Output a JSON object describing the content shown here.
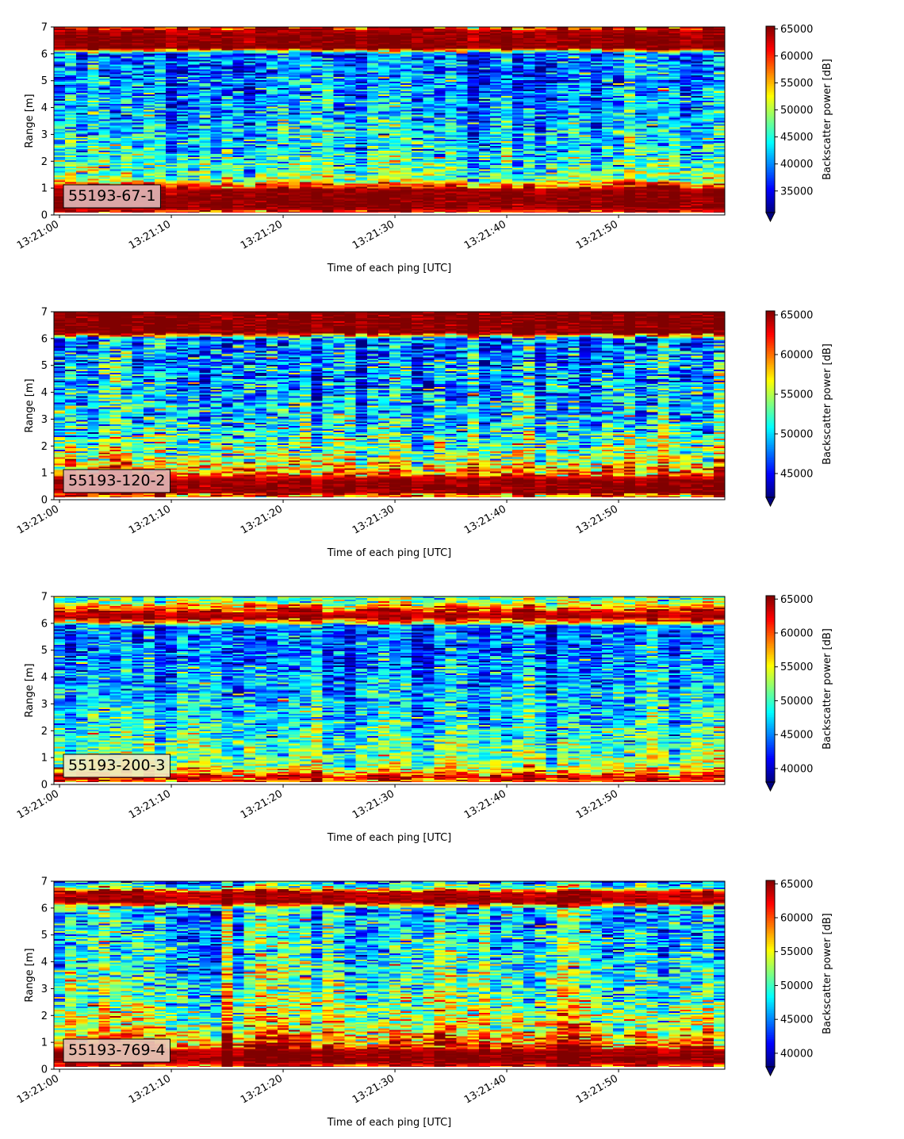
{
  "figure": {
    "colormap": "jet",
    "background": "#ffffff"
  },
  "chart_data": [
    {
      "type": "heatmap",
      "panel_label": "55193-67-1",
      "label_box_color": "#e2b4b4",
      "xlabel": "Time of each ping [UTC]",
      "ylabel": "Range [m]",
      "colorbar_label": "Backscatter power [dB]",
      "x_ticks": [
        "13:21:00",
        "13:21:10",
        "13:21:20",
        "13:21:30",
        "13:21:40",
        "13:21:50"
      ],
      "x_tick_seconds": [
        0,
        10,
        20,
        30,
        40,
        50
      ],
      "xlim_seconds": [
        -0.5,
        59.5
      ],
      "y_ticks": [
        0,
        1,
        2,
        3,
        4,
        5,
        6,
        7
      ],
      "ylim": [
        0,
        7
      ],
      "colorbar_ticks": [
        35000,
        40000,
        45000,
        50000,
        55000,
        60000,
        65000
      ],
      "clim": [
        31000,
        65500
      ],
      "colorbar_extend": "min",
      "profile": [
        {
          "range": 0.15,
          "value": 61000
        },
        {
          "range": 0.25,
          "value": 65000
        },
        {
          "range": 0.6,
          "value": 65500
        },
        {
          "range": 0.95,
          "value": 64500
        },
        {
          "range": 1.1,
          "value": 60000
        },
        {
          "range": 1.3,
          "value": 49000
        },
        {
          "range": 2.0,
          "value": 45000
        },
        {
          "range": 3.0,
          "value": 43000
        },
        {
          "range": 4.0,
          "value": 41000
        },
        {
          "range": 5.0,
          "value": 40000
        },
        {
          "range": 6.0,
          "value": 39000
        },
        {
          "range": 6.1,
          "value": 52000
        },
        {
          "range": 6.2,
          "value": 65500
        },
        {
          "range": 6.8,
          "value": 64500
        },
        {
          "range": 7.0,
          "value": 60000
        }
      ],
      "noise_level": 5500
    },
    {
      "type": "heatmap",
      "panel_label": "55193-120-2",
      "label_box_color": "#e2b4b4",
      "xlabel": "Time of each ping [UTC]",
      "ylabel": "Range [m]",
      "colorbar_label": "Backscatter power [dB]",
      "x_ticks": [
        "13:21:00",
        "13:21:10",
        "13:21:20",
        "13:21:30",
        "13:21:40",
        "13:21:50"
      ],
      "x_tick_seconds": [
        0,
        10,
        20,
        30,
        40,
        50
      ],
      "xlim_seconds": [
        -0.5,
        59.5
      ],
      "y_ticks": [
        0,
        1,
        2,
        3,
        4,
        5,
        6,
        7
      ],
      "ylim": [
        0,
        7
      ],
      "colorbar_ticks": [
        45000,
        50000,
        55000,
        60000,
        65000
      ],
      "clim": [
        42000,
        65500
      ],
      "colorbar_extend": "min",
      "profile": [
        {
          "range": 0.15,
          "value": 60000
        },
        {
          "range": 0.25,
          "value": 65500
        },
        {
          "range": 0.75,
          "value": 65000
        },
        {
          "range": 1.0,
          "value": 60000
        },
        {
          "range": 1.5,
          "value": 55500
        },
        {
          "range": 2.5,
          "value": 51500
        },
        {
          "range": 3.5,
          "value": 50000
        },
        {
          "range": 4.5,
          "value": 49000
        },
        {
          "range": 5.5,
          "value": 48500
        },
        {
          "range": 6.0,
          "value": 48000
        },
        {
          "range": 6.1,
          "value": 58000
        },
        {
          "range": 6.2,
          "value": 65500
        },
        {
          "range": 7.0,
          "value": 65500
        }
      ],
      "noise_level": 4500
    },
    {
      "type": "heatmap",
      "panel_label": "55193-200-3",
      "label_box_color": "#f0e8c0",
      "xlabel": "Time of each ping [UTC]",
      "ylabel": "Range [m]",
      "colorbar_label": "Backscatter power [dB]",
      "x_ticks": [
        "13:21:00",
        "13:21:10",
        "13:21:20",
        "13:21:30",
        "13:21:40",
        "13:21:50"
      ],
      "x_tick_seconds": [
        0,
        10,
        20,
        30,
        40,
        50
      ],
      "xlim_seconds": [
        -0.5,
        59.5
      ],
      "y_ticks": [
        0,
        1,
        2,
        3,
        4,
        5,
        6,
        7
      ],
      "ylim": [
        0,
        7
      ],
      "colorbar_ticks": [
        40000,
        45000,
        50000,
        55000,
        60000,
        65000
      ],
      "clim": [
        38000,
        65500
      ],
      "colorbar_extend": "min",
      "profile": [
        {
          "range": 0.1,
          "value": 60000
        },
        {
          "range": 0.25,
          "value": 63500
        },
        {
          "range": 0.45,
          "value": 57000
        },
        {
          "range": 0.8,
          "value": 52000
        },
        {
          "range": 1.5,
          "value": 50000
        },
        {
          "range": 2.5,
          "value": 48000
        },
        {
          "range": 3.5,
          "value": 46500
        },
        {
          "range": 4.5,
          "value": 45000
        },
        {
          "range": 5.5,
          "value": 44000
        },
        {
          "range": 5.9,
          "value": 44000
        },
        {
          "range": 6.0,
          "value": 56000
        },
        {
          "range": 6.2,
          "value": 64500
        },
        {
          "range": 6.5,
          "value": 62500
        },
        {
          "range": 6.8,
          "value": 52000
        },
        {
          "range": 7.0,
          "value": 50000
        }
      ],
      "noise_level": 4200
    },
    {
      "type": "heatmap",
      "panel_label": "55193-769-4",
      "label_box_color": "#e8c8b8",
      "xlabel": "Time of each ping [UTC]",
      "ylabel": "Range [m]",
      "colorbar_label": "Backscatter power [dB]",
      "x_ticks": [
        "13:21:00",
        "13:21:10",
        "13:21:20",
        "13:21:30",
        "13:21:40",
        "13:21:50"
      ],
      "x_tick_seconds": [
        0,
        10,
        20,
        30,
        40,
        50
      ],
      "xlim_seconds": [
        -0.5,
        59.5
      ],
      "y_ticks": [
        0,
        1,
        2,
        3,
        4,
        5,
        6,
        7
      ],
      "ylim": [
        0,
        7
      ],
      "colorbar_ticks": [
        40000,
        45000,
        50000,
        55000,
        60000,
        65000
      ],
      "clim": [
        38000,
        65500
      ],
      "colorbar_extend": "min",
      "profile": [
        {
          "range": 0.15,
          "value": 62000
        },
        {
          "range": 0.3,
          "value": 65500
        },
        {
          "range": 0.65,
          "value": 65000
        },
        {
          "range": 0.9,
          "value": 60500
        },
        {
          "range": 1.5,
          "value": 55000
        },
        {
          "range": 2.5,
          "value": 51500
        },
        {
          "range": 3.5,
          "value": 49500
        },
        {
          "range": 4.5,
          "value": 48000
        },
        {
          "range": 5.5,
          "value": 47500
        },
        {
          "range": 6.0,
          "value": 47000
        },
        {
          "range": 6.1,
          "value": 56000
        },
        {
          "range": 6.2,
          "value": 64500
        },
        {
          "range": 6.6,
          "value": 64000
        },
        {
          "range": 6.75,
          "value": 52000
        },
        {
          "range": 7.0,
          "value": 45000
        }
      ],
      "noise_level": 4800
    }
  ]
}
